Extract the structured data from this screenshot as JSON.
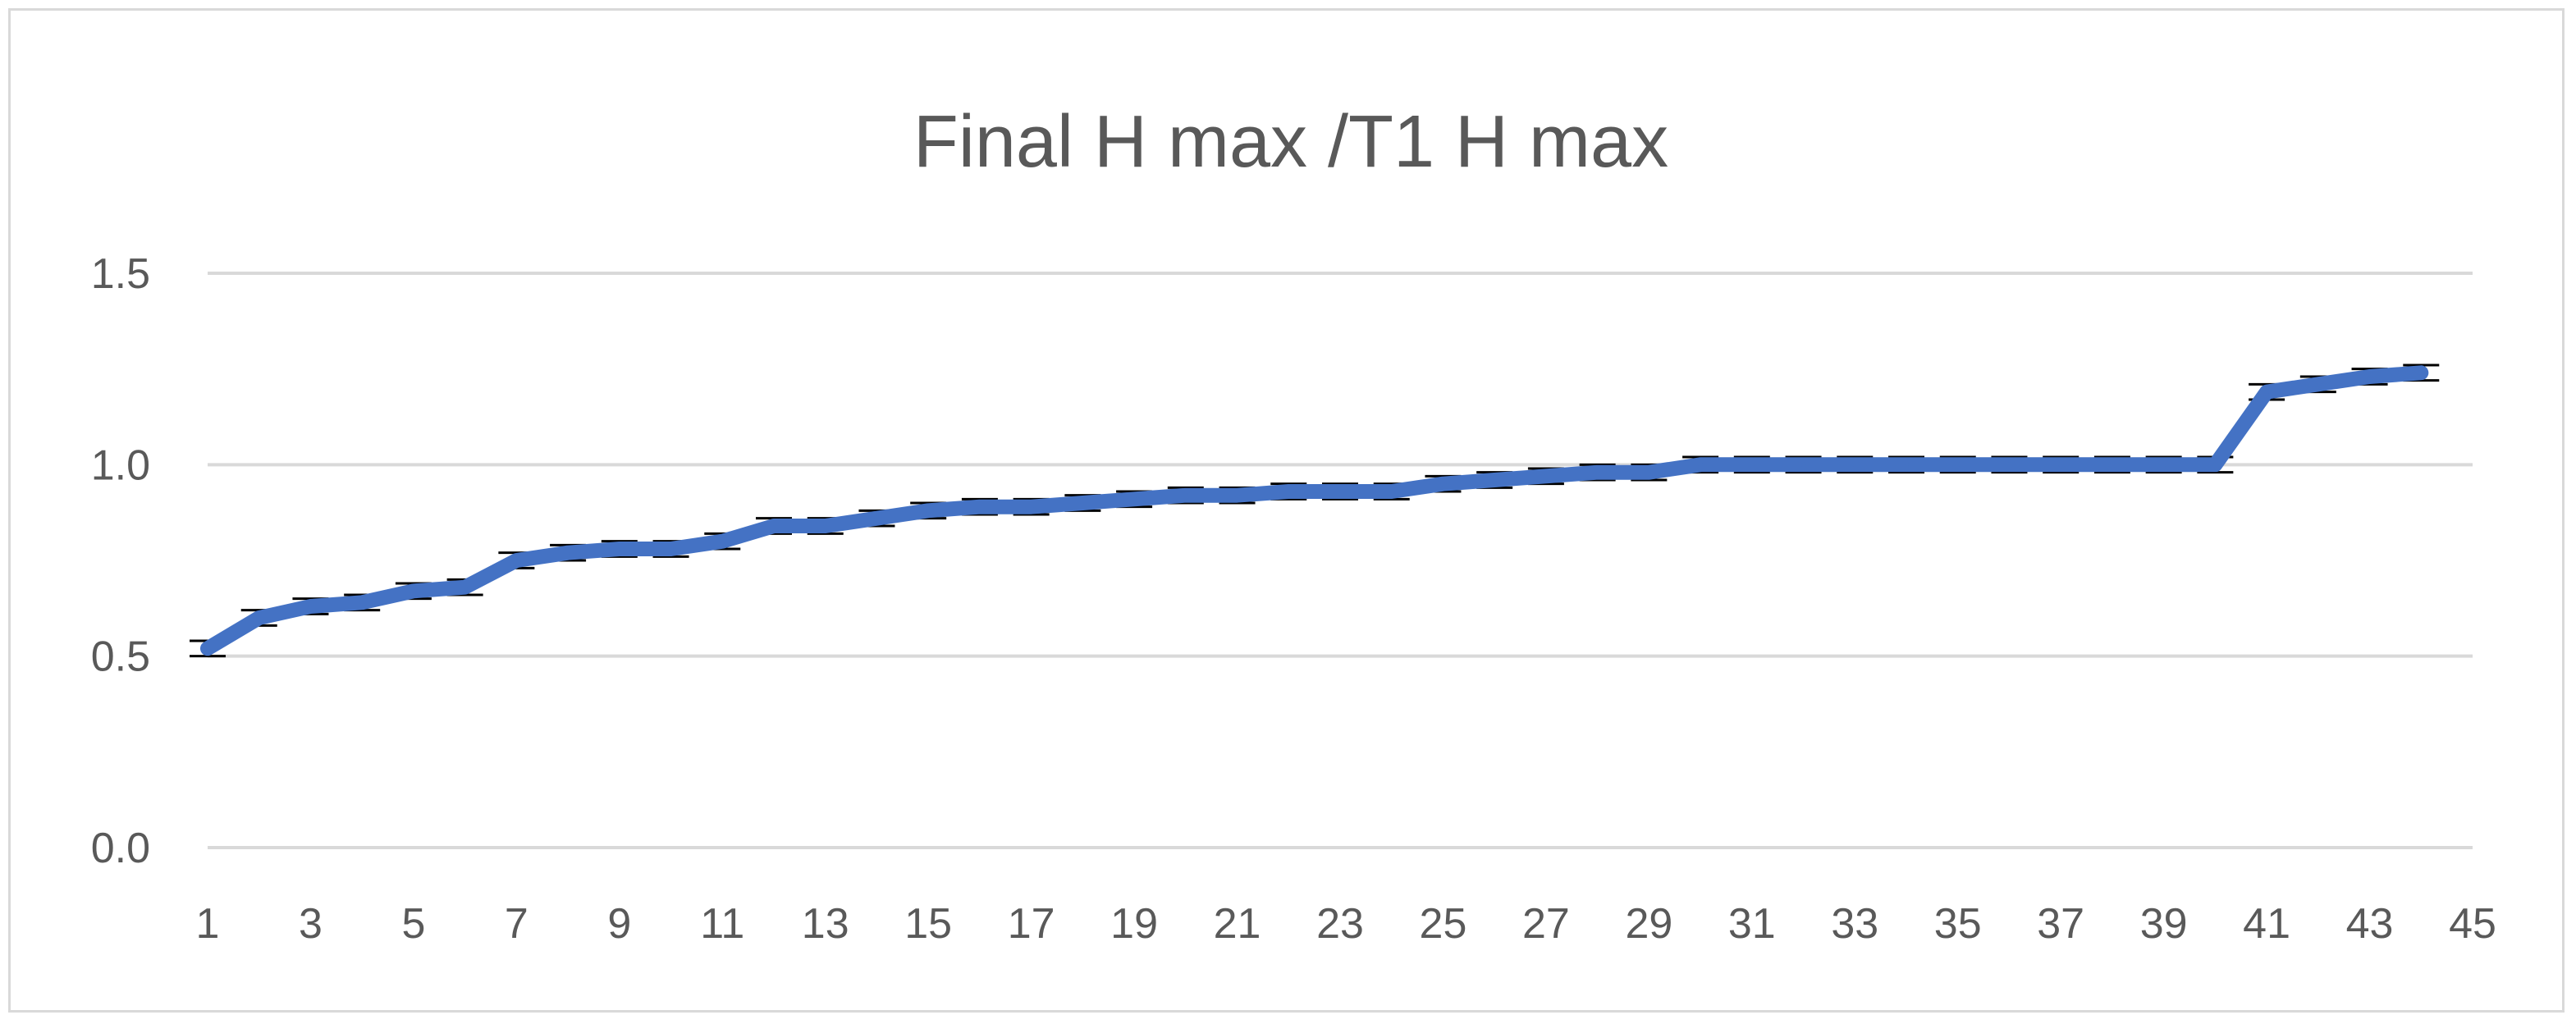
{
  "chart_data": {
    "type": "line",
    "title": "Final H max /T1 H max",
    "xlabel": "",
    "ylabel": "",
    "x": [
      1,
      2,
      3,
      4,
      5,
      6,
      7,
      8,
      9,
      10,
      11,
      12,
      13,
      14,
      15,
      16,
      17,
      18,
      19,
      20,
      21,
      22,
      23,
      24,
      25,
      26,
      27,
      28,
      29,
      30,
      31,
      32,
      33,
      34,
      35,
      36,
      37,
      38,
      39,
      40,
      41,
      42,
      43,
      44
    ],
    "x_tick_labels": [
      "1",
      "3",
      "5",
      "7",
      "9",
      "11",
      "13",
      "15",
      "17",
      "19",
      "21",
      "23",
      "25",
      "27",
      "29",
      "31",
      "33",
      "35",
      "37",
      "39",
      "41",
      "43",
      "45"
    ],
    "y_tick_labels": [
      "0.0",
      "0.5",
      "1.0",
      "1.5"
    ],
    "ylim": [
      0,
      1.5
    ],
    "xlim": [
      1,
      45
    ],
    "grid": true,
    "legend": "none",
    "series": [
      {
        "values": [
          0.52,
          0.6,
          0.63,
          0.64,
          0.67,
          0.68,
          0.75,
          0.77,
          0.78,
          0.78,
          0.8,
          0.84,
          0.84,
          0.86,
          0.88,
          0.89,
          0.89,
          0.9,
          0.91,
          0.92,
          0.92,
          0.93,
          0.93,
          0.93,
          0.95,
          0.96,
          0.97,
          0.98,
          0.98,
          1.0,
          1.0,
          1.0,
          1.0,
          1.0,
          1.0,
          1.0,
          1.0,
          1.0,
          1.0,
          1.0,
          1.19,
          1.21,
          1.23,
          1.24
        ],
        "error": 0.02,
        "color": "#4472c4"
      }
    ]
  }
}
